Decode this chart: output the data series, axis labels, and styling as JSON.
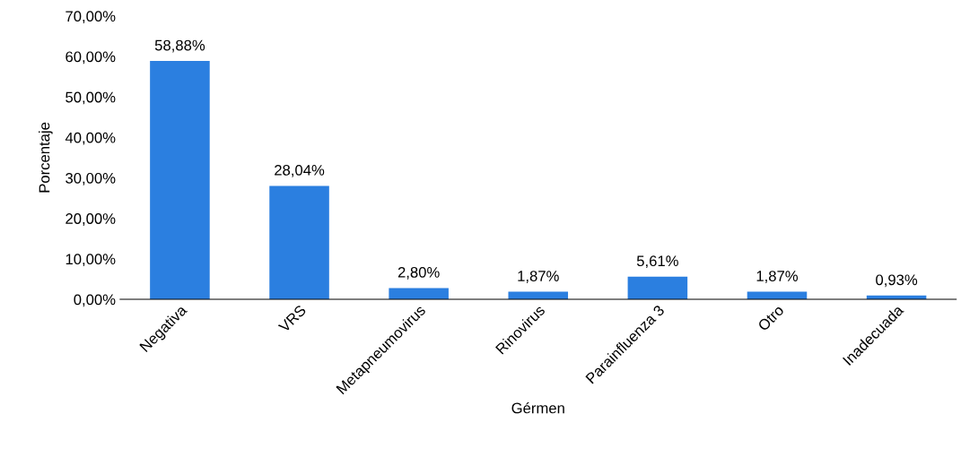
{
  "chart_data": {
    "type": "bar",
    "xlabel": "Gérmen",
    "ylabel": "Porcentaje",
    "categories": [
      "Negativa",
      "VRS",
      "Metapneumovirus",
      "Rinovirus",
      "Parainfluenza 3",
      "Otro",
      "Inadecuada"
    ],
    "values": [
      58.88,
      28.04,
      2.8,
      1.87,
      5.61,
      1.87,
      0.93
    ],
    "value_labels": [
      "58,88%",
      "28,04%",
      "2,80%",
      "1,87%",
      "5,61%",
      "1,87%",
      "0,93%"
    ],
    "color": "#2b7fe0",
    "ylim": [
      0,
      70
    ],
    "yticks": [
      {
        "value": 0,
        "label": "0,00%"
      },
      {
        "value": 10,
        "label": "10,00%"
      },
      {
        "value": 20,
        "label": "20,00%"
      },
      {
        "value": 30,
        "label": "30,00%"
      },
      {
        "value": 40,
        "label": "40,00%"
      },
      {
        "value": 50,
        "label": "50,00%"
      },
      {
        "value": 60,
        "label": "60,00%"
      },
      {
        "value": 70,
        "label": "70,00%"
      }
    ],
    "grid": false
  }
}
